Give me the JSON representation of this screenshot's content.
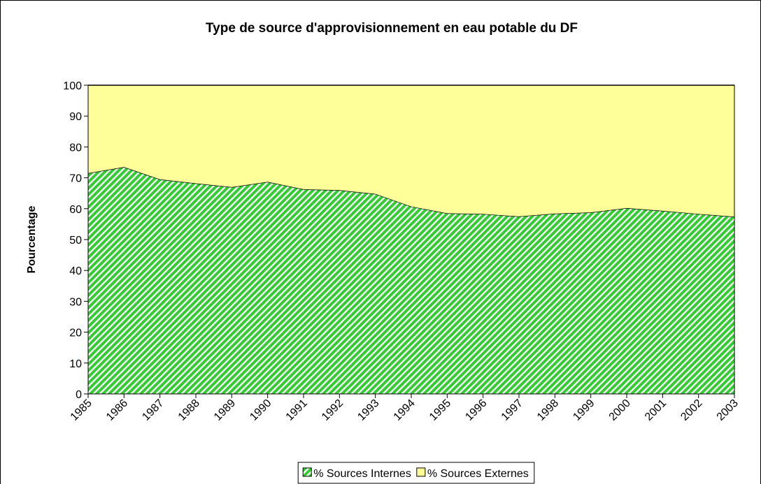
{
  "chart_data": {
    "type": "stacked_area",
    "title": "Type de source d'approvisionnement en eau potable du DF",
    "y_label": "Pourcentage",
    "categories": [
      "1985",
      "1986",
      "1987",
      "1988",
      "1989",
      "1990",
      "1991",
      "1992",
      "1993",
      "1994",
      "1995",
      "1996",
      "1997",
      "1998",
      "1999",
      "2000",
      "2001",
      "2002",
      "2003"
    ],
    "series": [
      {
        "name": "% Sources Internes",
        "color": "#33cc33",
        "pattern": "hatch",
        "values": [
          71.5,
          73.5,
          69.5,
          68.2,
          67,
          68.7,
          66.3,
          66,
          64.8,
          60.7,
          58.5,
          58.3,
          57.5,
          58.4,
          58.8,
          60.2,
          59.3,
          58.3,
          57.4
        ]
      },
      {
        "name": "% Sources Externes",
        "color": "#ffff99",
        "values": [
          28.5,
          26.5,
          30.5,
          31.8,
          33,
          31.3,
          33.7,
          34,
          35.2,
          39.3,
          41.5,
          41.7,
          42.5,
          41.6,
          41.2,
          39.8,
          40.7,
          41.7,
          42.6
        ]
      }
    ],
    "ylim": [
      0,
      100
    ],
    "yticks": [
      0,
      10,
      20,
      30,
      40,
      50,
      60,
      70,
      80,
      90,
      100
    ],
    "legend": "bottom"
  }
}
